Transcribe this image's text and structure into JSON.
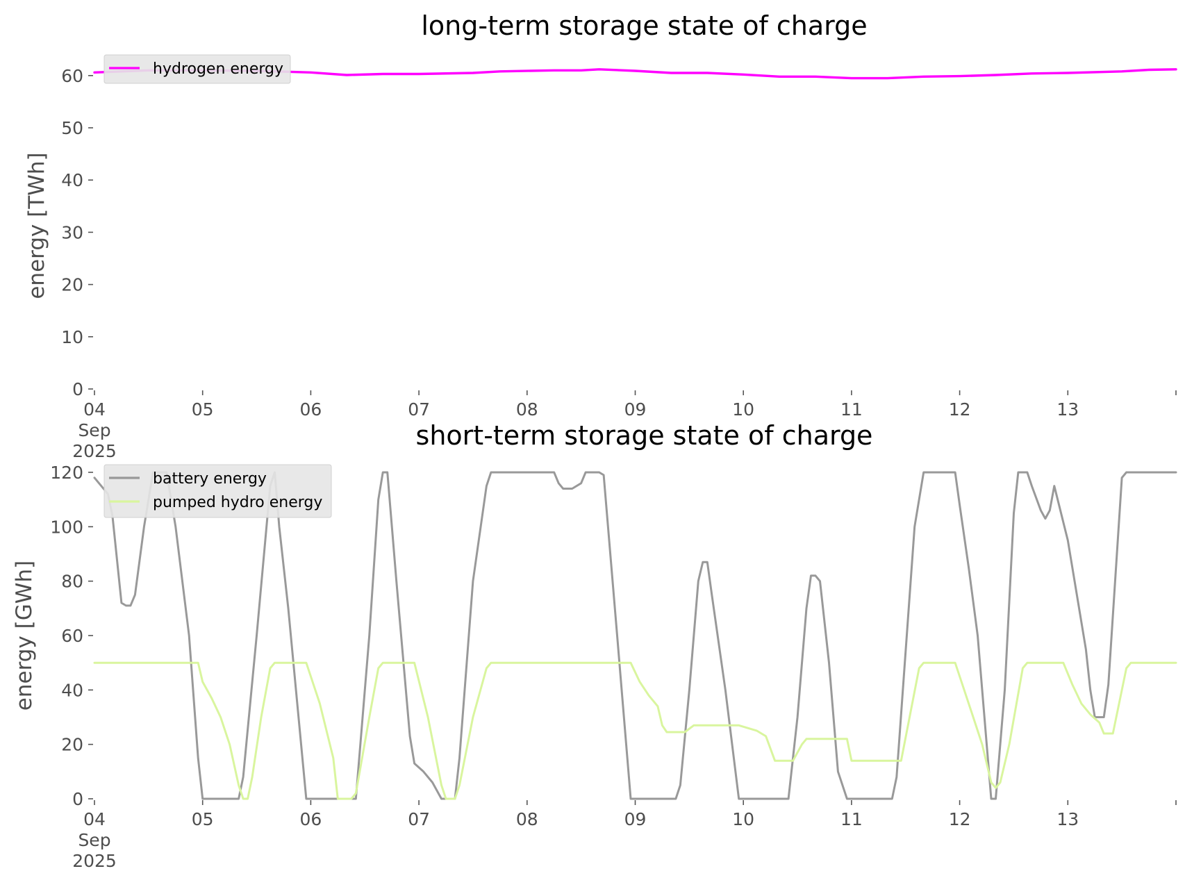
{
  "chart_data": [
    {
      "type": "line",
      "title": "long-term storage state of charge",
      "xlabel": "",
      "ylabel": "energy [TWh]",
      "ylim": [
        0,
        62.5
      ],
      "yticks": [
        0,
        10,
        20,
        30,
        40,
        50,
        60
      ],
      "xlim": [
        "2025-09-04",
        "2025-09-14"
      ],
      "xtick_labels": [
        {
          "date": "2025-09-04",
          "lines": [
            "04",
            "Sep",
            "2025"
          ]
        },
        {
          "date": "2025-09-05",
          "lines": [
            "05"
          ]
        },
        {
          "date": "2025-09-06",
          "lines": [
            "06"
          ]
        },
        {
          "date": "2025-09-07",
          "lines": [
            "07"
          ]
        },
        {
          "date": "2025-09-08",
          "lines": [
            "08"
          ]
        },
        {
          "date": "2025-09-09",
          "lines": [
            "09"
          ]
        },
        {
          "date": "2025-09-10",
          "lines": [
            "10"
          ]
        },
        {
          "date": "2025-09-11",
          "lines": [
            "11"
          ]
        },
        {
          "date": "2025-09-12",
          "lines": [
            "12"
          ]
        },
        {
          "date": "2025-09-13",
          "lines": [
            "13"
          ]
        }
      ],
      "grid": false,
      "legend_position": "upper left",
      "series": [
        {
          "name": "hydrogen energy",
          "color": "#ff00ff",
          "points": [
            [
              "2025-09-04 00:00",
              60.6
            ],
            [
              "2025-09-04 12:00",
              61.0
            ],
            [
              "2025-09-05 00:00",
              61.0
            ],
            [
              "2025-09-05 12:00",
              60.9
            ],
            [
              "2025-09-06 00:00",
              60.6
            ],
            [
              "2025-09-06 08:00",
              60.1
            ],
            [
              "2025-09-06 16:00",
              60.3
            ],
            [
              "2025-09-07 00:00",
              60.3
            ],
            [
              "2025-09-07 12:00",
              60.5
            ],
            [
              "2025-09-07 18:00",
              60.8
            ],
            [
              "2025-09-08 06:00",
              61.0
            ],
            [
              "2025-09-08 12:00",
              61.0
            ],
            [
              "2025-09-08 16:00",
              61.2
            ],
            [
              "2025-09-09 00:00",
              60.9
            ],
            [
              "2025-09-09 08:00",
              60.5
            ],
            [
              "2025-09-09 16:00",
              60.5
            ],
            [
              "2025-09-10 00:00",
              60.2
            ],
            [
              "2025-09-10 08:00",
              59.8
            ],
            [
              "2025-09-10 16:00",
              59.8
            ],
            [
              "2025-09-11 00:00",
              59.5
            ],
            [
              "2025-09-11 08:00",
              59.5
            ],
            [
              "2025-09-11 16:00",
              59.8
            ],
            [
              "2025-09-12 00:00",
              59.9
            ],
            [
              "2025-09-12 08:00",
              60.1
            ],
            [
              "2025-09-12 16:00",
              60.4
            ],
            [
              "2025-09-13 00:00",
              60.5
            ],
            [
              "2025-09-13 12:00",
              60.8
            ],
            [
              "2025-09-13 18:00",
              61.1
            ],
            [
              "2025-09-14 00:00",
              61.2
            ]
          ]
        }
      ]
    },
    {
      "type": "line",
      "title": "short-term storage state of charge",
      "xlabel": "",
      "ylabel": "energy [GWh]",
      "ylim": [
        0,
        120
      ],
      "yticks": [
        0,
        20,
        40,
        60,
        80,
        100,
        120
      ],
      "xlim": [
        "2025-09-04",
        "2025-09-14"
      ],
      "xtick_labels": [
        {
          "date": "2025-09-04",
          "lines": [
            "04",
            "Sep",
            "2025"
          ]
        },
        {
          "date": "2025-09-05",
          "lines": [
            "05"
          ]
        },
        {
          "date": "2025-09-06",
          "lines": [
            "06"
          ]
        },
        {
          "date": "2025-09-07",
          "lines": [
            "07"
          ]
        },
        {
          "date": "2025-09-08",
          "lines": [
            "08"
          ]
        },
        {
          "date": "2025-09-09",
          "lines": [
            "09"
          ]
        },
        {
          "date": "2025-09-10",
          "lines": [
            "10"
          ]
        },
        {
          "date": "2025-09-11",
          "lines": [
            "11"
          ]
        },
        {
          "date": "2025-09-12",
          "lines": [
            "12"
          ]
        },
        {
          "date": "2025-09-13",
          "lines": [
            "13"
          ]
        }
      ],
      "grid": false,
      "legend_position": "upper left",
      "series": [
        {
          "name": "battery energy",
          "color": "#999999",
          "points": [
            [
              "2025-09-04 00:00",
              118
            ],
            [
              "2025-09-04 03:00",
              112
            ],
            [
              "2025-09-04 04:00",
              104
            ],
            [
              "2025-09-04 06:00",
              72
            ],
            [
              "2025-09-04 07:00",
              71
            ],
            [
              "2025-09-04 08:00",
              71
            ],
            [
              "2025-09-04 09:00",
              75
            ],
            [
              "2025-09-04 11:00",
              100
            ],
            [
              "2025-09-04 13:00",
              120
            ],
            [
              "2025-09-04 16:00",
              120
            ],
            [
              "2025-09-04 18:00",
              100
            ],
            [
              "2025-09-04 21:00",
              60
            ],
            [
              "2025-09-04 23:00",
              15
            ],
            [
              "2025-09-05 00:00",
              0
            ],
            [
              "2025-09-05 08:00",
              0
            ],
            [
              "2025-09-05 09:00",
              8
            ],
            [
              "2025-09-05 12:00",
              60
            ],
            [
              "2025-09-05 15:00",
              115
            ],
            [
              "2025-09-05 16:00",
              120
            ],
            [
              "2025-09-05 17:00",
              100
            ],
            [
              "2025-09-05 19:00",
              70
            ],
            [
              "2025-09-05 23:00",
              0
            ],
            [
              "2025-09-06 06:00",
              0
            ],
            [
              "2025-09-06 10:00",
              0
            ],
            [
              "2025-09-06 11:00",
              20
            ],
            [
              "2025-09-06 13:00",
              60
            ],
            [
              "2025-09-06 15:00",
              110
            ],
            [
              "2025-09-06 16:00",
              120
            ],
            [
              "2025-09-06 17:00",
              120
            ],
            [
              "2025-09-06 19:00",
              80
            ],
            [
              "2025-09-06 22:00",
              23
            ],
            [
              "2025-09-06 23:00",
              13
            ],
            [
              "2025-09-07 01:00",
              10
            ],
            [
              "2025-09-07 03:00",
              6
            ],
            [
              "2025-09-07 05:00",
              0
            ],
            [
              "2025-09-07 08:00",
              0
            ],
            [
              "2025-09-07 09:00",
              15
            ],
            [
              "2025-09-07 12:00",
              80
            ],
            [
              "2025-09-07 15:00",
              115
            ],
            [
              "2025-09-07 16:00",
              120
            ],
            [
              "2025-09-08 06:00",
              120
            ],
            [
              "2025-09-08 07:00",
              116
            ],
            [
              "2025-09-08 08:00",
              114
            ],
            [
              "2025-09-08 10:00",
              114
            ],
            [
              "2025-09-08 12:00",
              116
            ],
            [
              "2025-09-08 13:00",
              120
            ],
            [
              "2025-09-08 16:00",
              120
            ],
            [
              "2025-09-08 17:00",
              119
            ],
            [
              "2025-09-08 20:00",
              60
            ],
            [
              "2025-09-08 23:00",
              0
            ],
            [
              "2025-09-09 09:00",
              0
            ],
            [
              "2025-09-09 10:00",
              5
            ],
            [
              "2025-09-09 12:00",
              40
            ],
            [
              "2025-09-09 14:00",
              80
            ],
            [
              "2025-09-09 15:00",
              87
            ],
            [
              "2025-09-09 16:00",
              87
            ],
            [
              "2025-09-09 17:00",
              75
            ],
            [
              "2025-09-09 20:00",
              40
            ],
            [
              "2025-09-09 23:00",
              0
            ],
            [
              "2025-09-10 10:00",
              0
            ],
            [
              "2025-09-10 12:00",
              30
            ],
            [
              "2025-09-10 14:00",
              70
            ],
            [
              "2025-09-10 15:00",
              82
            ],
            [
              "2025-09-10 16:00",
              82
            ],
            [
              "2025-09-10 17:00",
              80
            ],
            [
              "2025-09-10 19:00",
              50
            ],
            [
              "2025-09-10 21:00",
              10
            ],
            [
              "2025-09-10 23:00",
              0
            ],
            [
              "2025-09-11 09:00",
              0
            ],
            [
              "2025-09-11 10:00",
              8
            ],
            [
              "2025-09-11 14:00",
              100
            ],
            [
              "2025-09-11 16:00",
              120
            ],
            [
              "2025-09-11 23:00",
              120
            ],
            [
              "2025-09-12 00:00",
              108
            ],
            [
              "2025-09-12 02:00",
              85
            ],
            [
              "2025-09-12 04:00",
              60
            ],
            [
              "2025-09-12 06:00",
              20
            ],
            [
              "2025-09-12 07:00",
              0
            ],
            [
              "2025-09-12 08:00",
              0
            ],
            [
              "2025-09-12 10:00",
              40
            ],
            [
              "2025-09-12 12:00",
              105
            ],
            [
              "2025-09-12 13:00",
              120
            ],
            [
              "2025-09-12 15:00",
              120
            ],
            [
              "2025-09-12 16:00",
              115
            ],
            [
              "2025-09-12 18:00",
              106
            ],
            [
              "2025-09-12 19:00",
              103
            ],
            [
              "2025-09-12 20:00",
              106
            ],
            [
              "2025-09-12 21:00",
              115
            ],
            [
              "2025-09-13 00:00",
              95
            ],
            [
              "2025-09-13 04:00",
              55
            ],
            [
              "2025-09-13 05:00",
              40
            ],
            [
              "2025-09-13 06:00",
              30
            ],
            [
              "2025-09-13 08:00",
              30
            ],
            [
              "2025-09-13 09:00",
              42
            ],
            [
              "2025-09-13 12:00",
              118
            ],
            [
              "2025-09-13 13:00",
              120
            ],
            [
              "2025-09-14 00:00",
              120
            ]
          ]
        },
        {
          "name": "pumped hydro energy",
          "color": "#d9f59e",
          "points": [
            [
              "2025-09-04 00:00",
              50
            ],
            [
              "2025-09-04 23:00",
              50
            ],
            [
              "2025-09-05 00:00",
              43
            ],
            [
              "2025-09-05 02:00",
              37
            ],
            [
              "2025-09-05 04:00",
              30
            ],
            [
              "2025-09-05 06:00",
              20
            ],
            [
              "2025-09-05 08:00",
              5
            ],
            [
              "2025-09-05 09:00",
              0
            ],
            [
              "2025-09-05 10:00",
              0
            ],
            [
              "2025-09-05 11:00",
              8
            ],
            [
              "2025-09-05 13:00",
              30
            ],
            [
              "2025-09-05 15:00",
              48
            ],
            [
              "2025-09-05 16:00",
              50
            ],
            [
              "2025-09-05 23:00",
              50
            ],
            [
              "2025-09-06 02:00",
              35
            ],
            [
              "2025-09-06 05:00",
              15
            ],
            [
              "2025-09-06 06:00",
              0
            ],
            [
              "2025-09-06 09:00",
              0
            ],
            [
              "2025-09-06 10:00",
              2
            ],
            [
              "2025-09-06 13:00",
              30
            ],
            [
              "2025-09-06 15:00",
              48
            ],
            [
              "2025-09-06 16:00",
              50
            ],
            [
              "2025-09-06 23:00",
              50
            ],
            [
              "2025-09-07 02:00",
              30
            ],
            [
              "2025-09-07 05:00",
              5
            ],
            [
              "2025-09-07 06:00",
              0
            ],
            [
              "2025-09-07 08:00",
              0
            ],
            [
              "2025-09-07 09:00",
              5
            ],
            [
              "2025-09-07 12:00",
              30
            ],
            [
              "2025-09-07 15:00",
              48
            ],
            [
              "2025-09-07 16:00",
              50
            ],
            [
              "2025-09-08 23:00",
              50
            ],
            [
              "2025-09-09 01:00",
              43
            ],
            [
              "2025-09-09 03:00",
              38
            ],
            [
              "2025-09-09 05:00",
              34
            ],
            [
              "2025-09-09 06:00",
              27
            ],
            [
              "2025-09-09 07:00",
              24.5
            ],
            [
              "2025-09-09 11:00",
              24.5
            ],
            [
              "2025-09-09 13:00",
              27
            ],
            [
              "2025-09-09 23:00",
              27
            ],
            [
              "2025-09-10 03:00",
              25
            ],
            [
              "2025-09-10 05:00",
              23
            ],
            [
              "2025-09-10 07:00",
              14
            ],
            [
              "2025-09-10 11:00",
              14
            ],
            [
              "2025-09-10 13:00",
              20
            ],
            [
              "2025-09-10 14:00",
              22
            ],
            [
              "2025-09-10 23:00",
              22
            ],
            [
              "2025-09-11 00:00",
              14
            ],
            [
              "2025-09-11 11:00",
              14
            ],
            [
              "2025-09-11 15:00",
              48
            ],
            [
              "2025-09-11 16:00",
              50
            ],
            [
              "2025-09-11 23:00",
              50
            ],
            [
              "2025-09-12 01:00",
              40
            ],
            [
              "2025-09-12 03:00",
              30
            ],
            [
              "2025-09-12 05:00",
              20
            ],
            [
              "2025-09-12 07:00",
              6
            ],
            [
              "2025-09-12 08:00",
              4
            ],
            [
              "2025-09-12 09:00",
              6
            ],
            [
              "2025-09-12 11:00",
              20
            ],
            [
              "2025-09-12 14:00",
              48
            ],
            [
              "2025-09-12 15:00",
              50
            ],
            [
              "2025-09-12 23:00",
              50
            ],
            [
              "2025-09-13 01:00",
              42
            ],
            [
              "2025-09-13 03:00",
              35
            ],
            [
              "2025-09-13 05:00",
              31
            ],
            [
              "2025-09-13 07:00",
              28
            ],
            [
              "2025-09-13 08:00",
              24
            ],
            [
              "2025-09-13 10:00",
              24
            ],
            [
              "2025-09-13 13:00",
              48
            ],
            [
              "2025-09-13 14:00",
              50
            ],
            [
              "2025-09-14 00:00",
              50
            ]
          ]
        }
      ]
    }
  ]
}
